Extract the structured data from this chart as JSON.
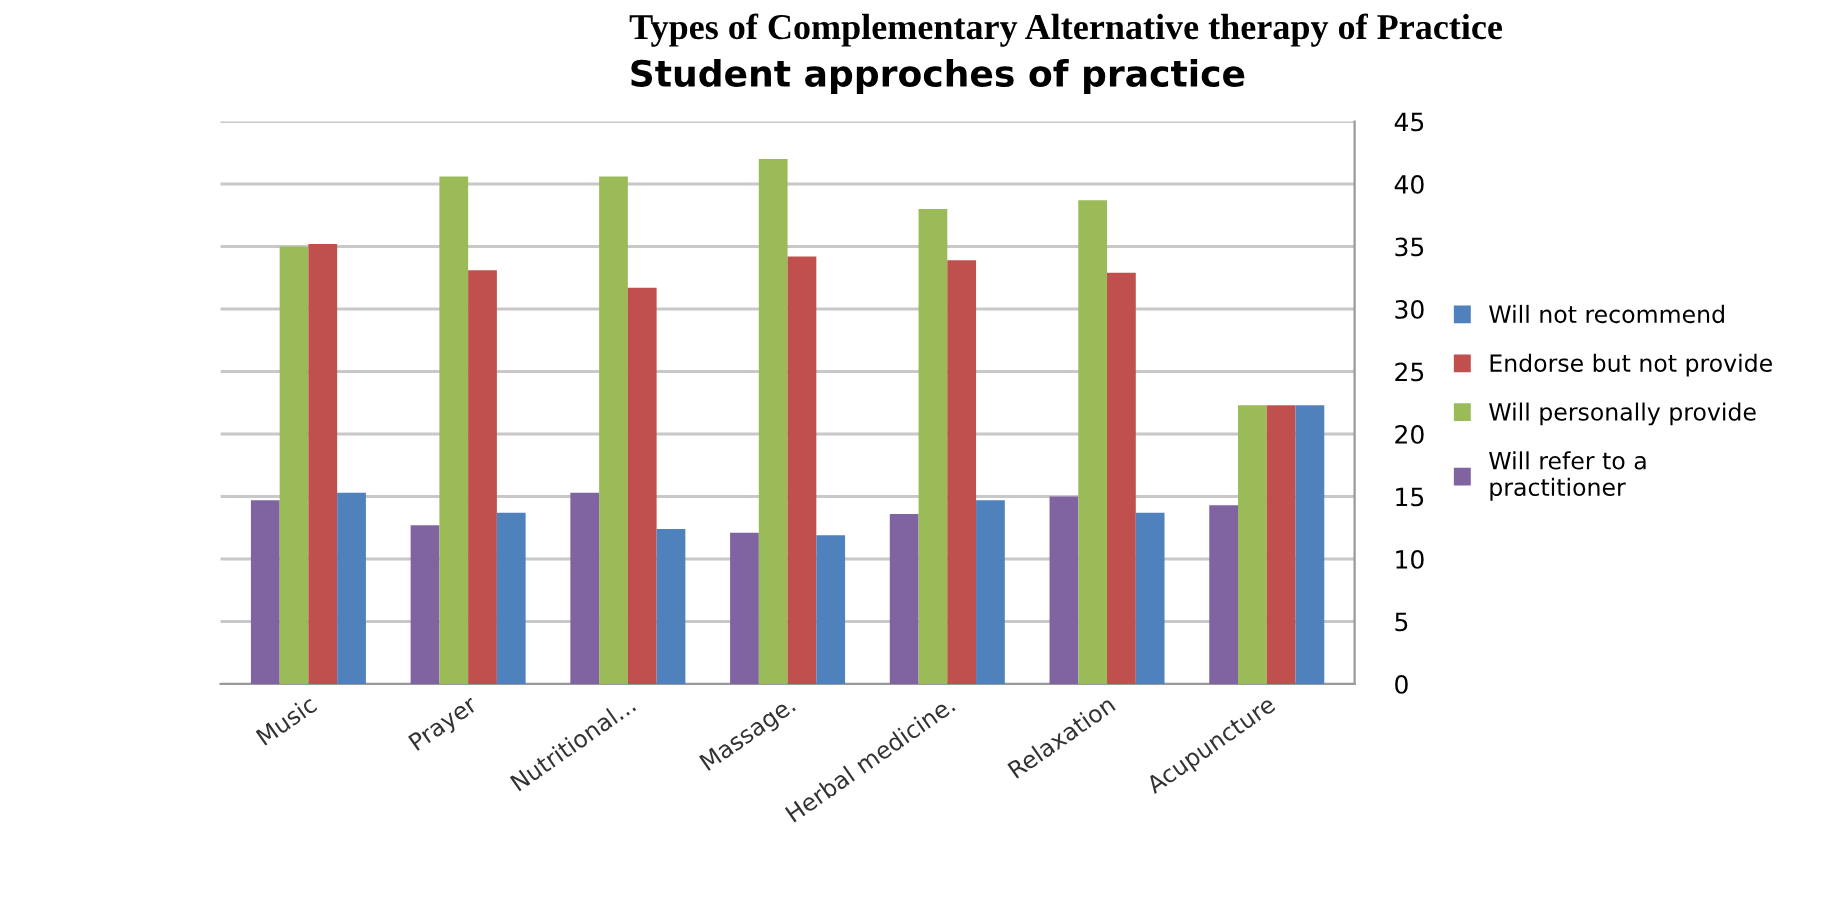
{
  "chart_data": {
    "type": "bar",
    "title": "Types of Complementary Alternative therapy of Practice",
    "subtitle": "Student approches of practice",
    "categories": [
      "Music",
      "Prayer",
      "Nutritional...",
      "Massage.",
      "Herbal medicine.",
      "Relaxation",
      "Acupuncture"
    ],
    "series": [
      {
        "name": "Will refer to a practitioner",
        "color": "#8064a2",
        "values": [
          14.7,
          12.7,
          15.3,
          12.1,
          13.6,
          15.0,
          14.3
        ]
      },
      {
        "name": "Will personally provide",
        "color": "#9bbb59",
        "values": [
          35.0,
          40.6,
          40.6,
          42.0,
          38.0,
          38.7,
          22.3
        ]
      },
      {
        "name": "Endorse but not provide",
        "color": "#c0504d",
        "values": [
          35.2,
          33.1,
          31.7,
          34.2,
          33.9,
          32.9,
          22.3
        ]
      },
      {
        "name": "Will not recommend",
        "color": "#4f81bd",
        "values": [
          15.3,
          13.7,
          12.4,
          11.9,
          14.7,
          13.7,
          22.3
        ]
      }
    ],
    "ylim": [
      0,
      45
    ],
    "yticks": [
      0,
      5,
      10,
      15,
      20,
      25,
      30,
      35,
      40,
      45
    ],
    "grid": "y",
    "legend": "right"
  }
}
